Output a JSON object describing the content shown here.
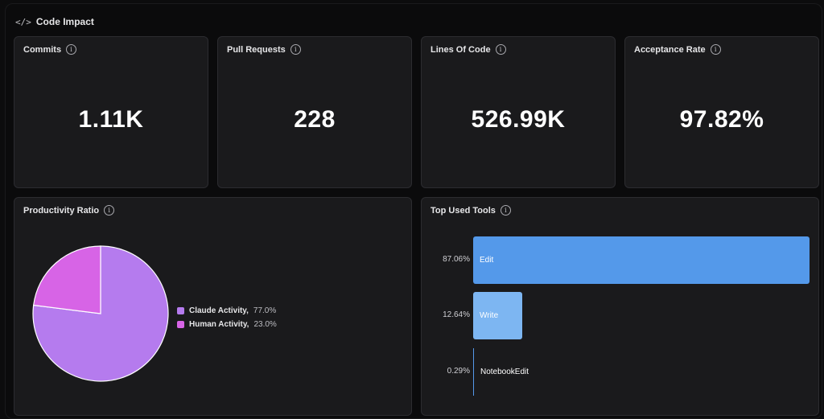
{
  "header": {
    "icon": "code-icon",
    "title": "Code Impact"
  },
  "metrics": [
    {
      "label": "Commits",
      "value": "1.11K"
    },
    {
      "label": "Pull Requests",
      "value": "228"
    },
    {
      "label": "Lines Of Code",
      "value": "526.99K"
    },
    {
      "label": "Acceptance Rate",
      "value": "97.82%"
    }
  ],
  "productivity": {
    "title": "Productivity Ratio",
    "legend": [
      {
        "label": "Claude Activity,",
        "value": "77.0%",
        "color": "#b57bee"
      },
      {
        "label": "Human Activity,",
        "value": "23.0%",
        "color": "#d764e6"
      }
    ]
  },
  "tools": {
    "title": "Top Used Tools",
    "bars": [
      {
        "name": "Edit",
        "pct_label": "87.06%",
        "color": "#5499ea"
      },
      {
        "name": "Write",
        "pct_label": "12.64%",
        "color": "#7db6f2"
      },
      {
        "name": "NotebookEdit",
        "pct_label": "0.29%",
        "color": "#5499ea"
      }
    ]
  },
  "chart_data": [
    {
      "type": "pie",
      "title": "Productivity Ratio",
      "labels": [
        "Claude Activity",
        "Human Activity"
      ],
      "values": [
        77.0,
        23.0
      ],
      "colors": [
        "#b57bee",
        "#d764e6"
      ],
      "legend": "right"
    },
    {
      "type": "bar",
      "orientation": "horizontal",
      "title": "Top Used Tools",
      "categories": [
        "Edit",
        "Write",
        "NotebookEdit"
      ],
      "values": [
        87.06,
        12.64,
        0.29
      ],
      "colors": [
        "#5499ea",
        "#7db6f2",
        "#5499ea"
      ]
    }
  ]
}
